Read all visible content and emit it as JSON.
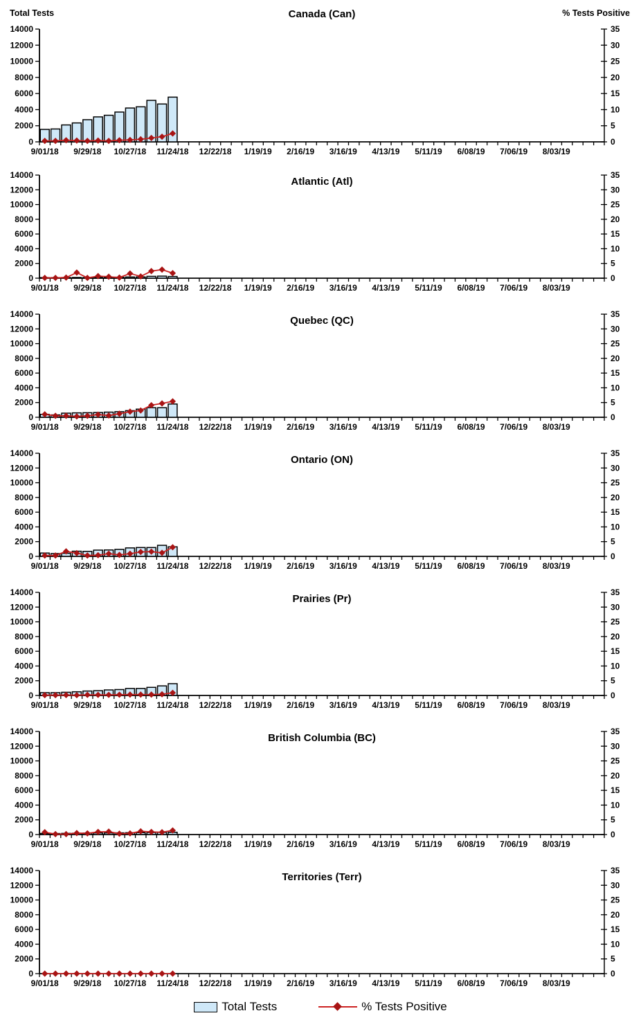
{
  "page": {
    "left_axis_header": "Total Tests",
    "right_axis_header": "% Tests Positive"
  },
  "legend": {
    "bar_label": "Total Tests",
    "line_label": "% Tests Positive"
  },
  "colors": {
    "bar_fill": "#cfe8f8",
    "bar_border": "#000000",
    "line": "#cc2222",
    "marker": "#a81414",
    "axis": "#000000",
    "text": "#000000"
  },
  "chart_data": {
    "type": "bar+line",
    "left_axis": {
      "label": "Total Tests",
      "min": 0,
      "max": 14000,
      "step": 2000,
      "ticks": [
        0,
        2000,
        4000,
        6000,
        8000,
        10000,
        12000,
        14000
      ]
    },
    "right_axis": {
      "label": "% Tests Positive",
      "min": 0,
      "max": 35,
      "step": 5,
      "ticks": [
        0,
        5,
        10,
        15,
        20,
        25,
        30,
        35
      ]
    },
    "x_axis": {
      "weeks_total": 53,
      "label_step": 4,
      "tick_labels": [
        "9/01/18",
        "9/29/18",
        "10/27/18",
        "11/24/18",
        "12/22/18",
        "1/19/19",
        "2/16/19",
        "3/16/19",
        "4/13/19",
        "5/11/19",
        "6/08/19",
        "7/06/19",
        "8/03/19"
      ]
    },
    "data_weeks": [
      "9/01/18",
      "9/08/18",
      "9/15/18",
      "9/22/18",
      "9/29/18",
      "10/06/18",
      "10/13/18",
      "10/20/18",
      "10/27/18",
      "11/03/18",
      "11/10/18",
      "11/17/18",
      "11/24/18"
    ],
    "panels": [
      {
        "title": "Canada (Can)",
        "total_tests": [
          1550,
          1600,
          2100,
          2350,
          2750,
          3100,
          3300,
          3700,
          4200,
          4350,
          5150,
          4700,
          5550
        ],
        "pct_positive": [
          0.3,
          0.3,
          0.5,
          0.4,
          0.3,
          0.4,
          0.3,
          0.5,
          0.6,
          0.8,
          1.2,
          1.6,
          2.6
        ]
      },
      {
        "title": "Atlantic (Atl)",
        "total_tests": [
          80,
          80,
          90,
          100,
          90,
          110,
          120,
          130,
          160,
          170,
          250,
          280,
          230
        ],
        "pct_positive": [
          0.1,
          0.1,
          0.2,
          1.9,
          0.1,
          0.7,
          0.5,
          0.2,
          1.6,
          0.6,
          2.4,
          2.9,
          1.7
        ]
      },
      {
        "title": "Quebec (QC)",
        "total_tests": [
          400,
          320,
          560,
          600,
          620,
          650,
          700,
          760,
          900,
          1100,
          1300,
          1300,
          1800
        ],
        "pct_positive": [
          1.0,
          0.5,
          0.5,
          0.3,
          0.5,
          0.9,
          0.6,
          1.2,
          1.9,
          2.3,
          4.1,
          4.7,
          5.4
        ]
      },
      {
        "title": "Ontario (ON)",
        "total_tests": [
          450,
          380,
          420,
          700,
          680,
          850,
          870,
          950,
          1150,
          1200,
          1200,
          1500,
          1300
        ],
        "pct_positive": [
          0.3,
          0.3,
          1.7,
          1.1,
          0.3,
          0.4,
          0.9,
          0.5,
          0.9,
          1.5,
          1.6,
          1.2,
          3.1
        ]
      },
      {
        "title": "Prairies (Pr)",
        "total_tests": [
          380,
          380,
          430,
          500,
          600,
          650,
          750,
          800,
          950,
          950,
          1100,
          1300,
          1600
        ],
        "pct_positive": [
          0.1,
          0.1,
          0.15,
          0.1,
          0.2,
          0.2,
          0.2,
          0.25,
          0.3,
          0.3,
          0.3,
          0.4,
          0.9
        ]
      },
      {
        "title": "British Columbia (BC)",
        "total_tests": [
          150,
          140,
          160,
          180,
          200,
          220,
          220,
          230,
          250,
          260,
          280,
          300,
          310
        ],
        "pct_positive": [
          0.8,
          0.15,
          0.15,
          0.5,
          0.4,
          0.9,
          1.0,
          0.3,
          0.4,
          1.1,
          0.9,
          0.8,
          1.4
        ]
      },
      {
        "title": "Territories (Terr)",
        "total_tests": [
          0,
          0,
          0,
          0,
          0,
          0,
          0,
          0,
          0,
          0,
          0,
          0,
          0
        ],
        "pct_positive": [
          0,
          0,
          0,
          0,
          0,
          0,
          0,
          0,
          0,
          0,
          0,
          0,
          0
        ]
      }
    ]
  }
}
